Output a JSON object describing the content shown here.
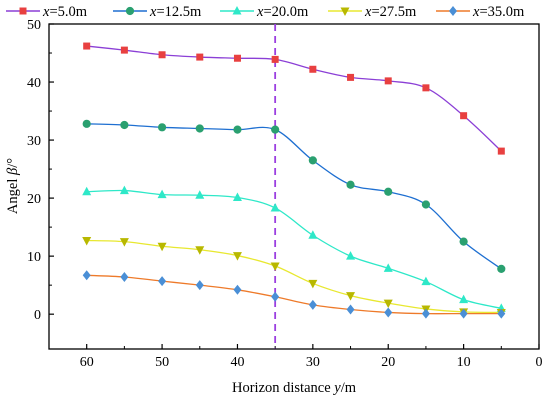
{
  "chart_data": {
    "type": "line",
    "xlabel_prefix": "Horizon distance ",
    "xlabel_var": "y",
    "xlabel_suffix": "/m",
    "ylabel_prefix": "Angel ",
    "ylabel_var": "β",
    "ylabel_suffix": "/°",
    "xlim": [
      65,
      0
    ],
    "ylim": [
      -6,
      50
    ],
    "xticks": [
      60,
      50,
      40,
      30,
      20,
      10,
      0
    ],
    "yticks": [
      0,
      10,
      20,
      30,
      40,
      50
    ],
    "reference_line_x": 35,
    "grid": false,
    "legend_position": "top",
    "x": [
      60,
      55,
      50,
      45,
      40,
      35,
      30,
      25,
      20,
      15,
      10,
      5
    ],
    "series": [
      {
        "name_prefix": "x",
        "name_value": "=5.0m",
        "line_color": "#8b3fd6",
        "marker_color": "#e84040",
        "marker": "square",
        "values": [
          46.2,
          45.5,
          44.7,
          44.3,
          44.1,
          43.9,
          42.2,
          40.8,
          40.2,
          39.0,
          34.2,
          28.1
        ]
      },
      {
        "name_prefix": "x",
        "name_value": "=12.5m",
        "line_color": "#1e6fd1",
        "marker_color": "#2aa070",
        "marker": "circle",
        "values": [
          32.8,
          32.6,
          32.2,
          32.0,
          31.8,
          31.8,
          26.5,
          22.3,
          21.1,
          18.9,
          12.5,
          7.8
        ]
      },
      {
        "name_prefix": "x",
        "name_value": "=20.0m",
        "line_color": "#2ee8c8",
        "marker_color": "#2ee8c8",
        "marker": "triangle-up",
        "values": [
          21.1,
          21.3,
          20.6,
          20.5,
          20.1,
          18.3,
          13.6,
          10.0,
          7.9,
          5.6,
          2.5,
          1.0
        ]
      },
      {
        "name_prefix": "x",
        "name_value": "=27.5m",
        "line_color": "#e8e830",
        "marker_color": "#b8b800",
        "marker": "triangle-down",
        "values": [
          12.7,
          12.5,
          11.7,
          11.1,
          10.1,
          8.3,
          5.3,
          3.2,
          1.9,
          0.9,
          0.4,
          0.3
        ]
      },
      {
        "name_prefix": "x",
        "name_value": "=35.0m",
        "line_color": "#ee7a2a",
        "marker_color": "#4a8fd6",
        "marker": "diamond",
        "values": [
          6.7,
          6.4,
          5.7,
          5.0,
          4.2,
          3.0,
          1.6,
          0.8,
          0.3,
          0.1,
          0.1,
          0.1
        ]
      }
    ]
  }
}
